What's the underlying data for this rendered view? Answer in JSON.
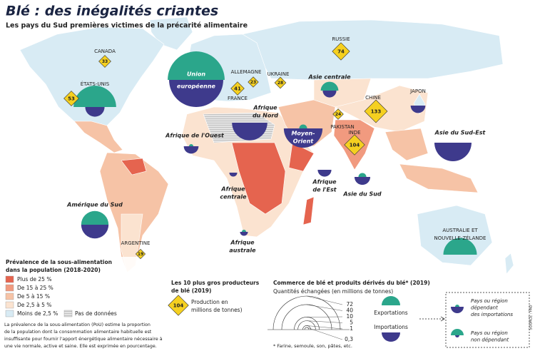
{
  "header": {
    "title": "Blé : des inégalités criantes",
    "subtitle": "Les pays du Sud premières victimes de la précarité alimentaire"
  },
  "map": {
    "regions": [
      {
        "label": [
          "Union",
          "européenne"
        ],
        "exports": 52,
        "imports": 47
      },
      {
        "label": [
          "ÉTATS-UNIS"
        ],
        "exports": 29,
        "imports": 6
      },
      {
        "label": [
          "Asie centrale"
        ],
        "exports": 5,
        "imports": 3
      },
      {
        "label": [
          "Afrique",
          "du Nord"
        ],
        "exports": null,
        "imports": 20
      },
      {
        "label": [
          "Moyen-",
          "Orient"
        ],
        "exports": 1,
        "imports": 24
      },
      {
        "label": [
          "Afrique de l'Ouest"
        ],
        "exports": 0.3,
        "imports": 3.5
      },
      {
        "label": [
          "Afrique",
          "centrale"
        ],
        "exports": null,
        "imports": 1
      },
      {
        "label": [
          "Afrique",
          "de l'Est"
        ],
        "exports": null,
        "imports": 3
      },
      {
        "label": [
          "Asie du Sud"
        ],
        "exports": 1,
        "imports": 4
      },
      {
        "label": [
          "Asie du Sud-Est"
        ],
        "exports": null,
        "imports": 22
      },
      {
        "label": [
          "JAPON"
        ],
        "exports": null,
        "imports": 3.5
      },
      {
        "label": [
          "Amérique du Sud"
        ],
        "exports": 12,
        "imports": 12
      },
      {
        "label": [
          "Afrique",
          "australe"
        ],
        "exports": 0.3,
        "imports": 1
      },
      {
        "label": [
          "AUSTRALIE ET",
          "NOUVELLE-ZÉLANDE"
        ],
        "exports": 18,
        "imports": null
      }
    ],
    "producers": [
      {
        "country": "RUSSIE",
        "value": 74
      },
      {
        "country": "CANADA",
        "value": 33
      },
      {
        "value": 53
      },
      {
        "country": "FRANCE",
        "value": 41
      },
      {
        "country": "ALLEMAGNE",
        "value": 23
      },
      {
        "country": "UKRAINE",
        "value": 28
      },
      {
        "country": "CHINE",
        "value": 133
      },
      {
        "country": "PAKISTAN",
        "value": 24
      },
      {
        "country": "INDE",
        "value": 104
      },
      {
        "country": "ARGENTINE",
        "value": 19
      }
    ]
  },
  "prevalence": {
    "title": [
      "Prévalence de la sous-alimentation",
      "dans la population (2018-2020)"
    ],
    "classes": [
      {
        "label": "Plus de 25 %",
        "color": "#e5644f"
      },
      {
        "label": "De 15 à 25 %",
        "color": "#f19a7f"
      },
      {
        "label": "De 5 à 15 %",
        "color": "#f6c3a6"
      },
      {
        "label": "De 2,5 à 5 %",
        "color": "#fbe3d0"
      },
      {
        "label": "Moins de 2,5 %",
        "color": "#d8ebf4"
      }
    ],
    "no_data": "Pas de données",
    "note": [
      "La prévalence de la sous-alimentation (PoU) estime la proportion",
      "de la population dont  la consommation alimentaire habituelle est",
      "insuffisante pour fournir l'apport énergétique alimentaire nécessaire à",
      "une vie normale, active et saine. Elle est exprimée en pourcentage."
    ]
  },
  "producers_legend": {
    "title": [
      "Les 10 plus gros producteurs",
      "de blé (2019)"
    ],
    "example": 104,
    "label": [
      "Production en",
      "millions de tonnes)"
    ]
  },
  "trade": {
    "title": "Commerce de blé et produits dérivés du blé* (2019)",
    "subtitle": "Quantités échangées (en millions de tonnes)",
    "scale": [
      72,
      40,
      10,
      5,
      1,
      {
        "value": 0.3,
        "label": "0,3"
      }
    ],
    "exports": "Exportations",
    "imports": "Importations",
    "footnote": "* Farine, semoule, son, pâtes, etc.",
    "dependent": [
      "Pays ou région",
      "dépendant",
      "des importations"
    ],
    "non_dependent": [
      "Pays ou région",
      "non dépendant"
    ]
  },
  "source": "SOURCE : FAO"
}
